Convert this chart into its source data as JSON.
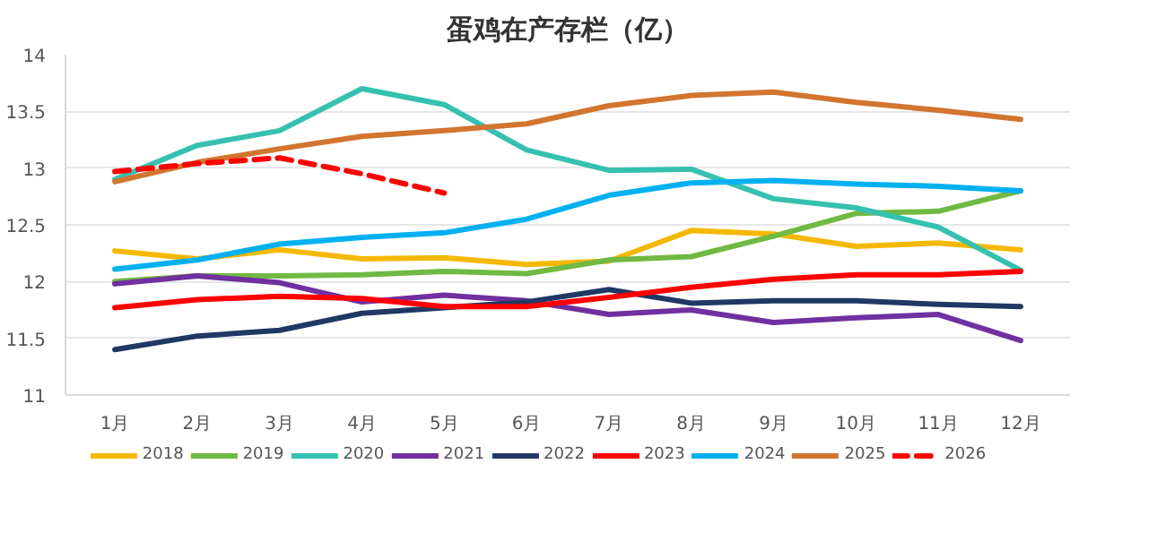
{
  "chart_data": {
    "type": "line",
    "title": "蛋鸡在产存栏（亿）",
    "categories": [
      "1月",
      "2月",
      "3月",
      "4月",
      "5月",
      "6月",
      "7月",
      "8月",
      "9月",
      "10月",
      "11月",
      "12月"
    ],
    "ylim": [
      11,
      14
    ],
    "yticks": [
      11,
      {
        "value": 11.5,
        "label": "11.5"
      },
      12,
      {
        "value": 12.5,
        "label": "12.5"
      },
      13,
      {
        "value": 13.5,
        "label": "13.5"
      },
      14
    ],
    "grid": "y",
    "legend": "bottom",
    "line_style": "solid",
    "series": [
      {
        "name": "2018",
        "color": "#f5b800",
        "values": [
          12.27,
          12.2,
          12.28,
          12.2,
          12.21,
          12.15,
          12.18,
          12.45,
          12.42,
          12.31,
          12.34,
          12.28
        ]
      },
      {
        "name": "2019",
        "color": "#70b943",
        "values": [
          12.0,
          12.05,
          12.05,
          12.06,
          12.09,
          12.07,
          12.19,
          12.22,
          12.4,
          12.6,
          12.62,
          12.8
        ]
      },
      {
        "name": "2020",
        "color": "#36c0b0",
        "values": [
          12.9,
          13.2,
          13.33,
          13.7,
          13.56,
          13.16,
          12.98,
          12.99,
          12.73,
          12.65,
          12.48,
          12.1
        ]
      },
      {
        "name": "2021",
        "color": "#7030a0",
        "values": [
          11.98,
          12.05,
          11.99,
          11.82,
          11.88,
          11.83,
          11.71,
          11.75,
          11.64,
          11.68,
          11.71,
          11.48
        ]
      },
      {
        "name": "2022",
        "color": "#203864",
        "values": [
          11.4,
          11.52,
          11.57,
          11.72,
          11.77,
          11.82,
          11.93,
          11.81,
          11.83,
          11.83,
          11.8,
          11.78
        ]
      },
      {
        "name": "2023",
        "color": "#ff0000",
        "values": [
          11.77,
          11.84,
          11.87,
          11.85,
          11.78,
          11.78,
          11.86,
          11.95,
          12.02,
          12.06,
          12.06,
          12.09
        ]
      },
      {
        "name": "2024",
        "color": "#00b0f0",
        "values": [
          12.11,
          12.19,
          12.33,
          12.39,
          12.43,
          12.55,
          12.76,
          12.87,
          12.89,
          12.86,
          12.84,
          12.8
        ]
      },
      {
        "name": "2025",
        "color": "#d2752f",
        "values": [
          12.88,
          13.05,
          13.17,
          13.28,
          13.33,
          13.39,
          13.55,
          13.64,
          13.67,
          13.58,
          13.51,
          13.43
        ]
      },
      {
        "name": "2026",
        "color": "#ff0000",
        "line_style": "dashed",
        "values": [
          12.97,
          13.04,
          13.09,
          12.95,
          12.78,
          null,
          null,
          null,
          null,
          null,
          null,
          null
        ]
      }
    ]
  }
}
